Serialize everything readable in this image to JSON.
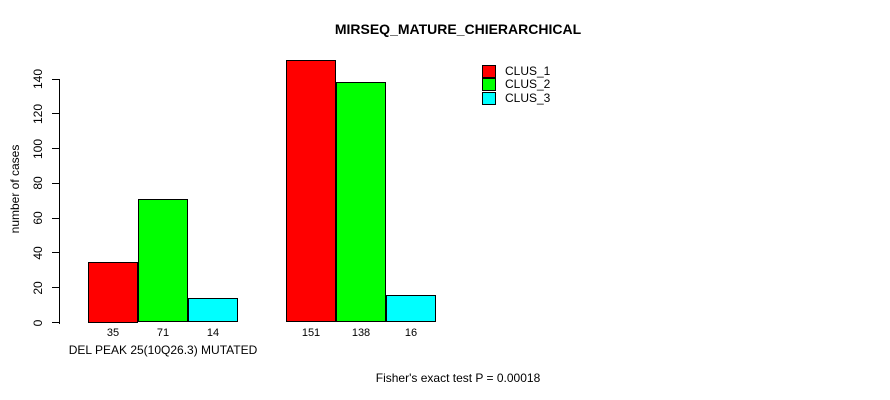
{
  "title": "MIRSEQ_MATURE_CHIERARCHICAL",
  "footnote": "Fisher's exact test P = 0.00018",
  "chart_data": {
    "type": "bar",
    "title": "MIRSEQ_MATURE_CHIERARCHICAL",
    "xlabel": "",
    "ylabel": "number of cases",
    "ylim": [
      0,
      140
    ],
    "yticks": [
      0,
      20,
      40,
      60,
      80,
      100,
      120,
      140
    ],
    "grid": false,
    "legend_position": "top-right",
    "bar_value_labels": true,
    "series": [
      {
        "name": "CLUS_1",
        "color": "#FF0000"
      },
      {
        "name": "CLUS_2",
        "color": "#00FF00"
      },
      {
        "name": "CLUS_3",
        "color": "#00FFFF"
      }
    ],
    "categories": [
      "DEL PEAK 25(10Q26.3) MUTATED",
      ""
    ],
    "groups": [
      {
        "label": "DEL PEAK 25(10Q26.3) MUTATED",
        "values": [
          35,
          71,
          14
        ]
      },
      {
        "label": "",
        "values": [
          151,
          138,
          16
        ]
      }
    ],
    "annotation": "Fisher's exact test P = 0.00018"
  }
}
